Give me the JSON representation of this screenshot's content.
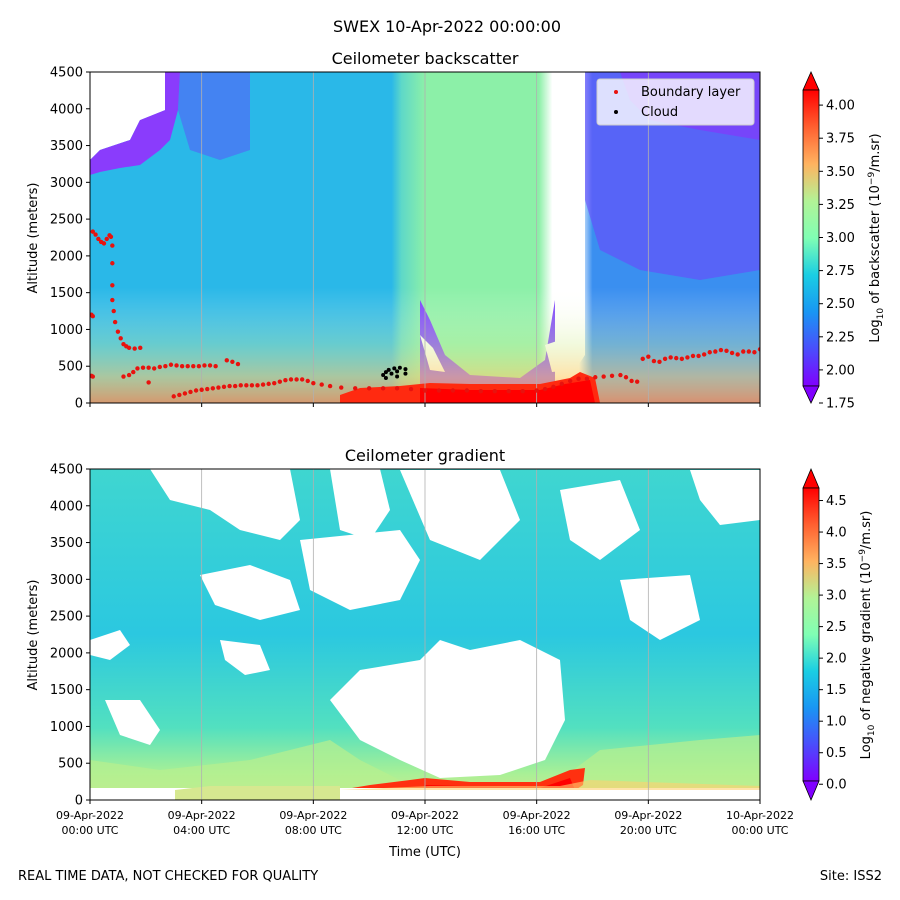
{
  "figure": {
    "suptitle": "SWEX 10-Apr-2022 00:00:00",
    "footer_left": "REAL TIME DATA, NOT CHECKED FOR QUALITY",
    "footer_right": "Site: ISS2"
  },
  "chart_data": [
    {
      "type": "heatmap",
      "title": "Ceilometer backscatter",
      "ylabel": "Altitude (meters)",
      "xlabel": "",
      "ylim": [
        0,
        4500
      ],
      "xlim_hours": [
        0,
        24
      ],
      "yticks": [
        "0",
        "500",
        "1000",
        "1500",
        "2000",
        "2500",
        "3000",
        "3500",
        "4000",
        "4500"
      ],
      "colorbar": {
        "label_prefix": "Log",
        "label_sub": "10",
        "label_suffix": " of backscatter (10",
        "label_sup": "−9",
        "label_end": "/m.sr)",
        "range": [
          1.75,
          4.25
        ],
        "ticks": [
          "1.75",
          "2.00",
          "2.25",
          "2.50",
          "2.75",
          "3.00",
          "3.25",
          "3.50",
          "3.75",
          "4.00"
        ],
        "extend": "both",
        "colormap": "rainbow"
      },
      "legend": {
        "placement": "top-right",
        "entries": [
          {
            "label": "Boundary layer",
            "color": "#e8120e"
          },
          {
            "label": "Cloud",
            "color": "#000000"
          }
        ]
      },
      "boundary_layer": {
        "name": "Boundary layer",
        "points": [
          [
            0.05,
            1200
          ],
          [
            0.1,
            1180
          ],
          [
            0.05,
            370
          ],
          [
            0.1,
            360
          ],
          [
            0.1,
            2330
          ],
          [
            0.2,
            2290
          ],
          [
            0.3,
            2230
          ],
          [
            0.4,
            2190
          ],
          [
            0.5,
            2170
          ],
          [
            0.6,
            2230
          ],
          [
            0.7,
            2280
          ],
          [
            0.75,
            2260
          ],
          [
            0.8,
            2140
          ],
          [
            0.8,
            1900
          ],
          [
            0.8,
            1600
          ],
          [
            0.8,
            1400
          ],
          [
            0.85,
            1250
          ],
          [
            0.9,
            1100
          ],
          [
            1.0,
            970
          ],
          [
            1.1,
            880
          ],
          [
            1.2,
            800
          ],
          [
            1.3,
            770
          ],
          [
            1.4,
            750
          ],
          [
            1.6,
            740
          ],
          [
            1.8,
            750
          ],
          [
            1.2,
            360
          ],
          [
            1.4,
            380
          ],
          [
            1.55,
            420
          ],
          [
            1.7,
            470
          ],
          [
            1.9,
            480
          ],
          [
            2.1,
            480
          ],
          [
            2.3,
            470
          ],
          [
            2.5,
            490
          ],
          [
            2.7,
            500
          ],
          [
            2.9,
            520
          ],
          [
            3.1,
            510
          ],
          [
            3.3,
            500
          ],
          [
            3.5,
            500
          ],
          [
            3.7,
            500
          ],
          [
            3.9,
            500
          ],
          [
            4.1,
            510
          ],
          [
            4.3,
            510
          ],
          [
            4.5,
            500
          ],
          [
            4.9,
            580
          ],
          [
            5.1,
            560
          ],
          [
            5.3,
            530
          ],
          [
            2.1,
            280
          ],
          [
            3.0,
            90
          ],
          [
            3.2,
            110
          ],
          [
            3.4,
            130
          ],
          [
            3.6,
            150
          ],
          [
            3.8,
            170
          ],
          [
            4.0,
            180
          ],
          [
            4.2,
            190
          ],
          [
            4.4,
            200
          ],
          [
            4.6,
            210
          ],
          [
            4.8,
            220
          ],
          [
            5.0,
            230
          ],
          [
            5.2,
            230
          ],
          [
            5.4,
            240
          ],
          [
            5.6,
            240
          ],
          [
            5.8,
            240
          ],
          [
            6.0,
            240
          ],
          [
            6.2,
            250
          ],
          [
            6.4,
            260
          ],
          [
            6.6,
            270
          ],
          [
            6.8,
            290
          ],
          [
            7.0,
            310
          ],
          [
            7.2,
            320
          ],
          [
            7.4,
            320
          ],
          [
            7.6,
            320
          ],
          [
            7.8,
            300
          ],
          [
            8.0,
            270
          ],
          [
            8.3,
            250
          ],
          [
            8.6,
            230
          ],
          [
            9.0,
            210
          ],
          [
            9.5,
            200
          ],
          [
            10.0,
            200
          ],
          [
            10.5,
            200
          ],
          [
            11.0,
            200
          ],
          [
            11.5,
            190
          ],
          [
            12.0,
            170
          ],
          [
            12.5,
            170
          ],
          [
            13.0,
            170
          ],
          [
            13.5,
            170
          ],
          [
            14.0,
            160
          ],
          [
            14.5,
            160
          ],
          [
            15.0,
            160
          ],
          [
            15.5,
            160
          ],
          [
            16.0,
            170
          ],
          [
            16.3,
            190
          ],
          [
            16.6,
            220
          ],
          [
            16.9,
            260
          ],
          [
            17.2,
            300
          ],
          [
            17.5,
            330
          ],
          [
            17.8,
            330
          ],
          [
            18.1,
            350
          ],
          [
            18.4,
            360
          ],
          [
            18.7,
            370
          ],
          [
            19.0,
            380
          ],
          [
            19.2,
            350
          ],
          [
            19.4,
            300
          ],
          [
            19.6,
            290
          ],
          [
            19.8,
            600
          ],
          [
            20.0,
            630
          ],
          [
            20.2,
            570
          ],
          [
            20.4,
            560
          ],
          [
            20.6,
            600
          ],
          [
            20.8,
            620
          ],
          [
            21.0,
            610
          ],
          [
            21.2,
            600
          ],
          [
            21.4,
            620
          ],
          [
            21.6,
            640
          ],
          [
            21.8,
            640
          ],
          [
            22.0,
            660
          ],
          [
            22.2,
            690
          ],
          [
            22.4,
            700
          ],
          [
            22.6,
            720
          ],
          [
            22.8,
            710
          ],
          [
            23.0,
            680
          ],
          [
            23.2,
            660
          ],
          [
            23.4,
            700
          ],
          [
            23.6,
            700
          ],
          [
            23.8,
            690
          ],
          [
            24.0,
            730
          ]
        ]
      },
      "cloud": {
        "name": "Cloud",
        "points": [
          [
            10.5,
            380
          ],
          [
            10.6,
            420
          ],
          [
            10.7,
            450
          ],
          [
            10.8,
            400
          ],
          [
            10.9,
            470
          ],
          [
            11.0,
            430
          ],
          [
            11.1,
            480
          ],
          [
            11.0,
            360
          ],
          [
            10.6,
            340
          ],
          [
            11.3,
            460
          ],
          [
            11.3,
            400
          ]
        ]
      }
    },
    {
      "type": "heatmap",
      "title": "Ceilometer gradient",
      "ylabel": "Altitude (meters)",
      "xlabel": "Time (UTC)",
      "ylim": [
        0,
        4500
      ],
      "xlim_hours": [
        0,
        24
      ],
      "yticks": [
        "0",
        "500",
        "1000",
        "1500",
        "2000",
        "2500",
        "3000",
        "3500",
        "4000",
        "4500"
      ],
      "xticks": [
        {
          "hour": 0,
          "date": "09-Apr-2022",
          "time": "00:00 UTC"
        },
        {
          "hour": 4,
          "date": "09-Apr-2022",
          "time": "04:00 UTC"
        },
        {
          "hour": 8,
          "date": "09-Apr-2022",
          "time": "08:00 UTC"
        },
        {
          "hour": 12,
          "date": "09-Apr-2022",
          "time": "12:00 UTC"
        },
        {
          "hour": 16,
          "date": "09-Apr-2022",
          "time": "16:00 UTC"
        },
        {
          "hour": 20,
          "date": "09-Apr-2022",
          "time": "20:00 UTC"
        },
        {
          "hour": 24,
          "date": "10-Apr-2022",
          "time": "00:00 UTC"
        }
      ],
      "colorbar": {
        "label_prefix": "Log",
        "label_sub": "10",
        "label_suffix": " of negative gradient (10",
        "label_sup": "−9",
        "label_end": "/m.sr)",
        "range": [
          -0.25,
          5.0
        ],
        "ticks": [
          "0.0",
          "0.5",
          "1.0",
          "1.5",
          "2.0",
          "2.5",
          "3.0",
          "3.5",
          "4.0",
          "4.5"
        ],
        "extend": "both",
        "colormap": "rainbow"
      }
    }
  ]
}
